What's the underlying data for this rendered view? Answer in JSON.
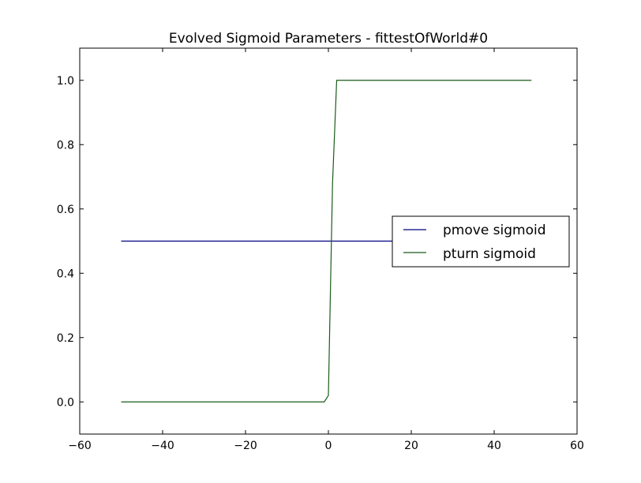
{
  "chart_data": {
    "type": "line",
    "title": "Evolved Sigmoid Parameters - fittestOfWorld#0",
    "xlabel": "",
    "ylabel": "",
    "xlim": [
      -60,
      60
    ],
    "ylim": [
      -0.1,
      1.1
    ],
    "xticks": [
      -60,
      -40,
      -20,
      0,
      20,
      40,
      60
    ],
    "xtick_labels": [
      "−60",
      "−40",
      "−20",
      "0",
      "20",
      "40",
      "60"
    ],
    "yticks": [
      0.0,
      0.2,
      0.4,
      0.6,
      0.8,
      1.0
    ],
    "ytick_labels": [
      "0.0",
      "0.2",
      "0.4",
      "0.6",
      "0.8",
      "1.0"
    ],
    "grid": false,
    "legend_position": "center-right",
    "series": [
      {
        "name": "pmove sigmoid",
        "color": "#000080",
        "x": [
          -50,
          49
        ],
        "y": [
          0.5,
          0.5
        ]
      },
      {
        "name": "pturn sigmoid",
        "color": "#1a5c1a",
        "x": [
          -50,
          -1,
          0,
          1,
          2,
          3,
          49
        ],
        "y": [
          0.0,
          0.0,
          0.02,
          0.68,
          1.0,
          1.0,
          1.0
        ]
      }
    ]
  }
}
